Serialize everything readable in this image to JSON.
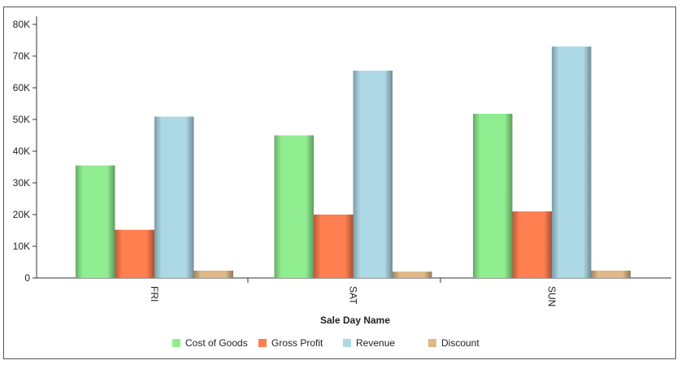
{
  "chart_data": {
    "type": "bar",
    "categories": [
      "FRI",
      "SAT",
      "SUN"
    ],
    "series": [
      {
        "name": "Cost of Goods",
        "values": [
          35500,
          45000,
          51800
        ],
        "color": "#90EE90"
      },
      {
        "name": "Gross Profit",
        "values": [
          15200,
          20000,
          21000
        ],
        "color": "#FF7F50"
      },
      {
        "name": "Revenue",
        "values": [
          50900,
          65400,
          73000
        ],
        "color": "#ADD8E6"
      },
      {
        "name": "Discount",
        "values": [
          2300,
          2000,
          2300
        ],
        "color": "#DEB887"
      }
    ],
    "xlabel": "Sale Day Name",
    "ylabel": "",
    "ylim": [
      0,
      80000
    ],
    "yticks": [
      {
        "value": 0,
        "label": "0"
      },
      {
        "value": 10000,
        "label": "10K"
      },
      {
        "value": 20000,
        "label": "20K"
      },
      {
        "value": 30000,
        "label": "30K"
      },
      {
        "value": 40000,
        "label": "40K"
      },
      {
        "value": 50000,
        "label": "50K"
      },
      {
        "value": 60000,
        "label": "60K"
      },
      {
        "value": 70000,
        "label": "70K"
      },
      {
        "value": 80000,
        "label": "80K"
      }
    ],
    "grid": false,
    "legend_position": "bottom"
  }
}
